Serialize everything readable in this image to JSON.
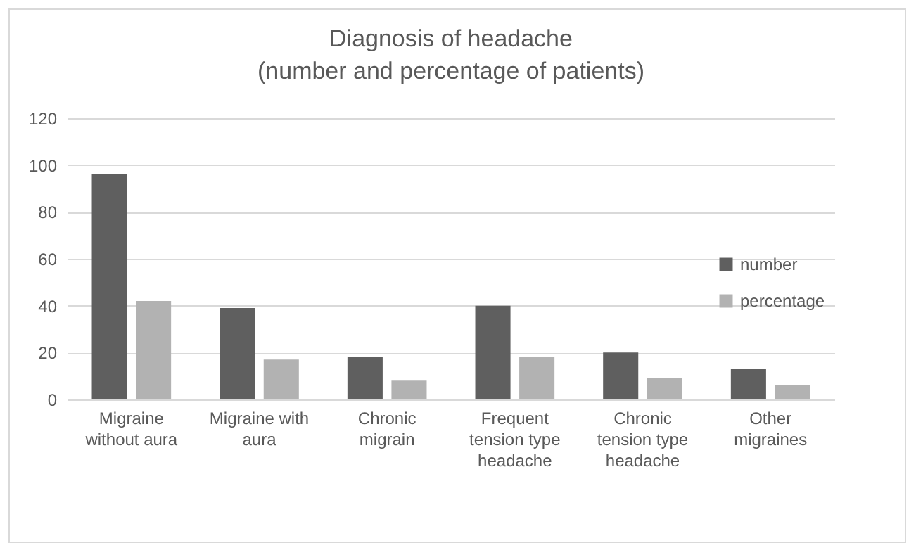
{
  "chart_data": {
    "type": "bar",
    "title": "Diagnosis of headache",
    "subtitle": "(number and percentage of patients)",
    "categories": [
      "Migraine without aura",
      "Migraine with aura",
      "Chronic migrain",
      "Frequent tension type headache",
      "Chronic tension type headache",
      "Other migraines"
    ],
    "series": [
      {
        "name": "number",
        "color": "#5f5f5f",
        "values": [
          96,
          39,
          18,
          40,
          20,
          13
        ]
      },
      {
        "name": "percentage",
        "color": "#b2b2b2",
        "values": [
          42,
          17,
          8,
          18,
          9,
          6
        ]
      }
    ],
    "ylim": [
      0,
      120
    ],
    "yticks": [
      0,
      20,
      40,
      60,
      80,
      100,
      120
    ],
    "grid": "y",
    "legend": "right"
  }
}
